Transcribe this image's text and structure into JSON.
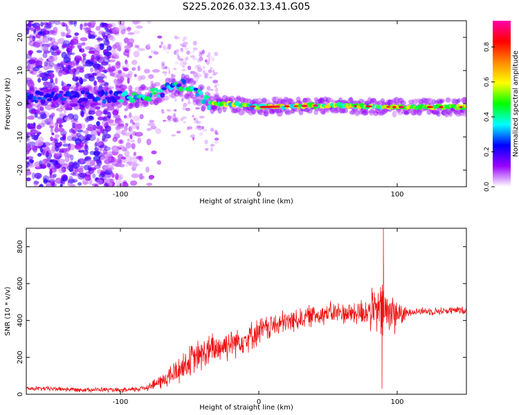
{
  "figure": {
    "title": "S225.2026.032.13.41.G05"
  },
  "chart_data": [
    {
      "type": "heatmap",
      "xlabel": "Height of straight line (km)",
      "ylabel": "Frequency (Hz)",
      "xlim": [
        -168,
        150
      ],
      "ylim": [
        -25,
        25
      ],
      "xticks": [
        -100,
        0,
        100
      ],
      "yticks": [
        -20,
        -10,
        0,
        10,
        20
      ],
      "colorbar": {
        "label": "Normalized spectral amplitude",
        "range": [
          0.0,
          0.95
        ],
        "ticks": [
          0.0,
          0.2,
          0.4,
          0.6,
          0.8
        ],
        "colors": [
          "#ffffff",
          "#9900ff",
          "#0000ff",
          "#00ffff",
          "#00ff00",
          "#ffff00",
          "#ff8800",
          "#ff0000",
          "#ff00aa"
        ]
      },
      "ridge": [
        {
          "x": -168,
          "freq": 2
        },
        {
          "x": -100,
          "freq": 2
        },
        {
          "x": -85,
          "freq": 2
        },
        {
          "x": -70,
          "freq": 4
        },
        {
          "x": -55,
          "freq": 6
        },
        {
          "x": -45,
          "freq": 3
        },
        {
          "x": -35,
          "freq": 0
        },
        {
          "x": -20,
          "freq": 0
        },
        {
          "x": 0,
          "freq": -1
        },
        {
          "x": 50,
          "freq": -0.5
        },
        {
          "x": 100,
          "freq": -1
        },
        {
          "x": 150,
          "freq": -1
        }
      ]
    },
    {
      "type": "line",
      "xlabel": "Height of straight line (km)",
      "ylabel": "SNR (10 * v/v)",
      "xlim": [
        -168,
        150
      ],
      "ylim": [
        0,
        900
      ],
      "xticks": [
        -100,
        0,
        100
      ],
      "yticks": [
        0,
        200,
        400,
        600,
        800
      ],
      "color": "#ee1111",
      "series": [
        {
          "name": "SNR",
          "x": [
            -168,
            -150,
            -130,
            -110,
            -100,
            -90,
            -80,
            -70,
            -60,
            -50,
            -40,
            -30,
            -20,
            -10,
            0,
            10,
            20,
            30,
            40,
            50,
            60,
            70,
            80,
            85,
            90,
            95,
            100,
            105,
            110,
            120,
            130,
            140,
            150
          ],
          "values": [
            30,
            30,
            25,
            25,
            20,
            25,
            40,
            70,
            120,
            180,
            220,
            250,
            280,
            300,
            340,
            370,
            390,
            410,
            430,
            440,
            440,
            440,
            450,
            450,
            450,
            440,
            440,
            430,
            450,
            450,
            450,
            455,
            455
          ],
          "spread": [
            15,
            15,
            15,
            15,
            15,
            18,
            25,
            50,
            90,
            100,
            110,
            110,
            100,
            90,
            90,
            80,
            80,
            70,
            70,
            70,
            70,
            80,
            120,
            160,
            200,
            160,
            110,
            50,
            25,
            25,
            25,
            25,
            25
          ]
        }
      ],
      "peaks": [
        {
          "x": 90,
          "value": 900
        },
        {
          "x": 89,
          "value": 30
        }
      ]
    }
  ]
}
